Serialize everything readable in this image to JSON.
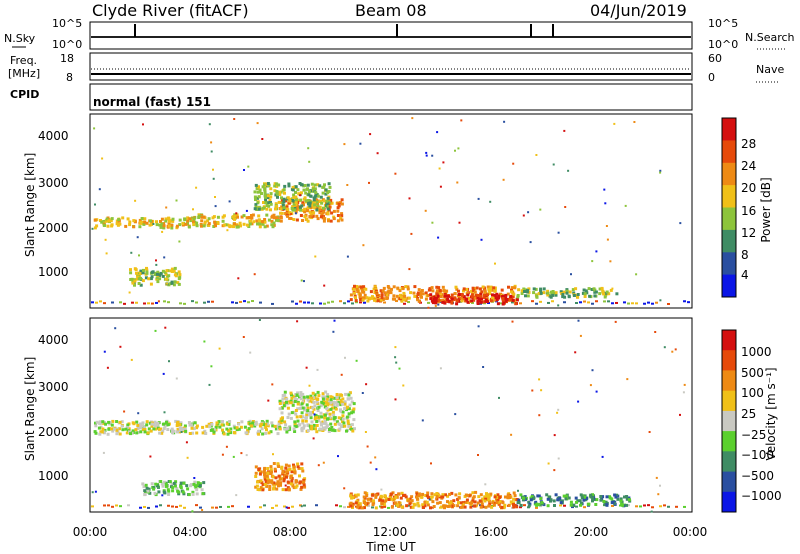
{
  "header": {
    "station": "Clyde River (fitACF)",
    "beam": "Beam 08",
    "date": "04/Jun/2019"
  },
  "panels": {
    "nsky": {
      "label": "N.Sky",
      "ticks": [
        "10^5",
        "10^0"
      ]
    },
    "nsearch": {
      "label": "N.Search",
      "ticks": [
        "10^5",
        "10^0"
      ]
    },
    "freq": {
      "label_line1": "Freq.",
      "label_line2": "[MHz]",
      "ticks": [
        "18",
        "8"
      ]
    },
    "nave": {
      "label": "Nave",
      "ticks": [
        "60",
        "0"
      ]
    },
    "cpid": {
      "label": "CPID",
      "mode": "normal (fast) 151"
    }
  },
  "colors": {
    "power": [
      "#0b16e6",
      "#2a4fa0",
      "#3f8c64",
      "#8dc43b",
      "#f0c018",
      "#ee8a14",
      "#e64a0a",
      "#d40f0f"
    ],
    "velocity": [
      "#d40f0f",
      "#e64a0a",
      "#ee8a14",
      "#f0c018",
      "#c9c9c2",
      "#5bcf2e",
      "#3f8c64",
      "#2a4fa0",
      "#0b16e6"
    ]
  },
  "chart_data": [
    {
      "type": "heatmap",
      "name": "power-panel",
      "ylabel": "Slant Range [km]",
      "yticks": [
        "1000",
        "2000",
        "3000",
        "4000"
      ],
      "ylim": [
        200,
        4500
      ],
      "xlim": [
        0,
        24
      ],
      "colorbar": {
        "label": "Power [dB]",
        "ticks": [
          "4",
          "8",
          "12",
          "16",
          "20",
          "24",
          "28"
        ]
      },
      "regions": [
        {
          "x": [
            0.1,
            4.0
          ],
          "y": [
            2000,
            2230
          ],
          "level": 4
        },
        {
          "x": [
            4.0,
            7.5
          ],
          "y": [
            2020,
            2300
          ],
          "level": 4
        },
        {
          "x": [
            7.5,
            10.0
          ],
          "y": [
            2150,
            2650
          ],
          "level": 5
        },
        {
          "x": [
            6.5,
            9.5
          ],
          "y": [
            2400,
            3000
          ],
          "level": 3
        },
        {
          "x": [
            10.3,
            17.0
          ],
          "y": [
            350,
            700
          ],
          "level": 5
        },
        {
          "x": [
            13.5,
            17.0
          ],
          "y": [
            300,
            520
          ],
          "level": 7
        },
        {
          "x": [
            1.5,
            3.5
          ],
          "y": [
            720,
            1100
          ],
          "level": 3
        },
        {
          "x": [
            17.0,
            21.0
          ],
          "y": [
            450,
            650
          ],
          "level": 3
        }
      ]
    },
    {
      "type": "heatmap",
      "name": "velocity-panel",
      "ylabel": "Slant Range [km]",
      "yticks": [
        "1000",
        "2000",
        "3000",
        "4000"
      ],
      "ylim": [
        200,
        4500
      ],
      "xlim": [
        0,
        24
      ],
      "xticks": [
        "00:00",
        "04:00",
        "08:00",
        "12:00",
        "16:00",
        "20:00",
        "00:00"
      ],
      "xlabel": "Time UT",
      "colorbar": {
        "label": "Velocity [m s⁻¹]",
        "ticks": [
          "1000",
          "500",
          "100",
          "25",
          "−25",
          "−100",
          "−500",
          "−1000"
        ]
      },
      "regions": [
        {
          "x": [
            0.1,
            7.5
          ],
          "y": [
            1950,
            2250
          ],
          "level": 4
        },
        {
          "x": [
            7.5,
            10.5
          ],
          "y": [
            2000,
            2900
          ],
          "level": 4
        },
        {
          "x": [
            10.3,
            17.0
          ],
          "y": [
            300,
            650
          ],
          "level": 2
        },
        {
          "x": [
            17.0,
            21.5
          ],
          "y": [
            350,
            600
          ],
          "level": 6
        },
        {
          "x": [
            6.5,
            8.5
          ],
          "y": [
            700,
            1300
          ],
          "level": 2
        },
        {
          "x": [
            2.0,
            4.5
          ],
          "y": [
            600,
            900
          ],
          "level": 5
        }
      ]
    }
  ]
}
